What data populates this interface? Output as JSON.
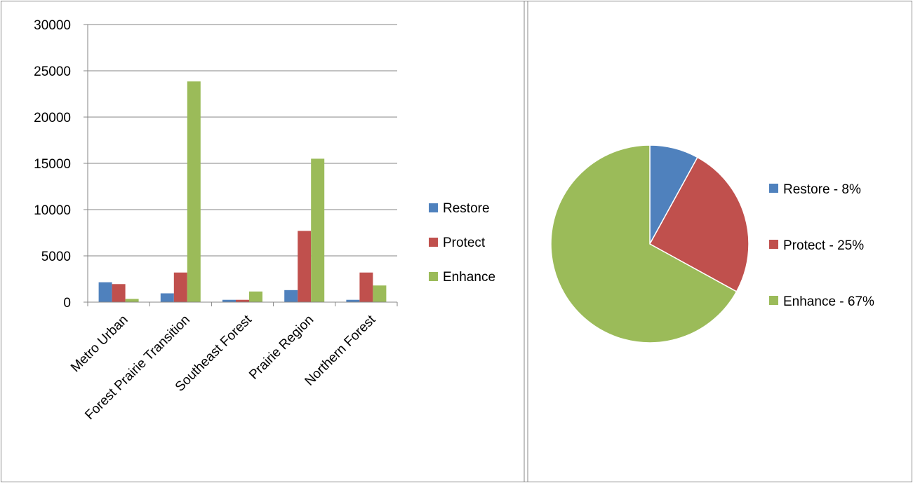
{
  "chart_data": [
    {
      "type": "bar",
      "title": "",
      "xlabel": "",
      "ylabel": "",
      "categories": [
        "Metro Urban",
        "Forest Prairie Transition",
        "Southeast Forest",
        "Prairie Region",
        "Northern Forest"
      ],
      "series": [
        {
          "name": "Restore",
          "color": "#4f81bd",
          "values": [
            2150,
            950,
            250,
            1300,
            250
          ]
        },
        {
          "name": "Protect",
          "color": "#c0504d",
          "values": [
            1950,
            3200,
            250,
            7700,
            3200
          ]
        },
        {
          "name": "Enhance",
          "color": "#9bbb59",
          "values": [
            350,
            23850,
            1150,
            15500,
            1800
          ]
        }
      ],
      "yticks": [
        "0",
        "5000",
        "10000",
        "15000",
        "20000",
        "25000",
        "30000"
      ],
      "ylim": [
        0,
        30000
      ],
      "grid": true,
      "legend": "right"
    },
    {
      "type": "pie",
      "title": "",
      "slices": [
        {
          "label": "Restore - 8%",
          "value": 8,
          "color": "#4f81bd"
        },
        {
          "label": "Protect - 25%",
          "value": 25,
          "color": "#c0504d"
        },
        {
          "label": "Enhance - 67%",
          "value": 67,
          "color": "#9bbb59"
        }
      ],
      "legend": "right"
    }
  ]
}
